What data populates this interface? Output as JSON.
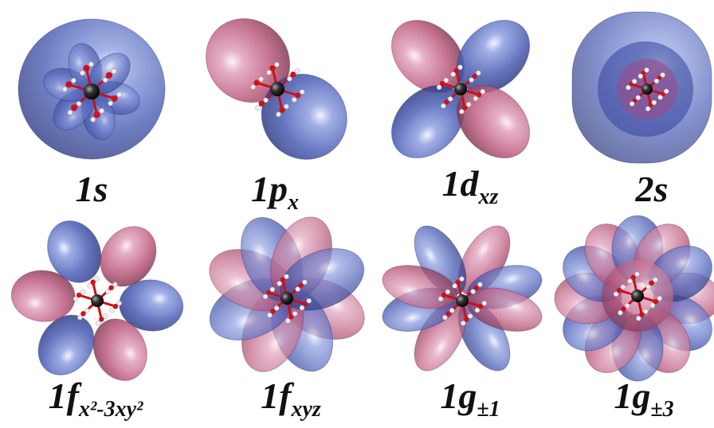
{
  "panels": [
    {
      "label": "1s"
    },
    {
      "label": "1p",
      "subscript": "x"
    },
    {
      "label": "1d",
      "subscript": "xz"
    },
    {
      "label": "2s"
    },
    {
      "label": "1f",
      "subscript": "x²-3xy²"
    },
    {
      "label": "1f",
      "subscript": "xyz"
    },
    {
      "label": "1g",
      "subscript": "±1"
    },
    {
      "label": "1g",
      "subscript": "±3"
    }
  ]
}
